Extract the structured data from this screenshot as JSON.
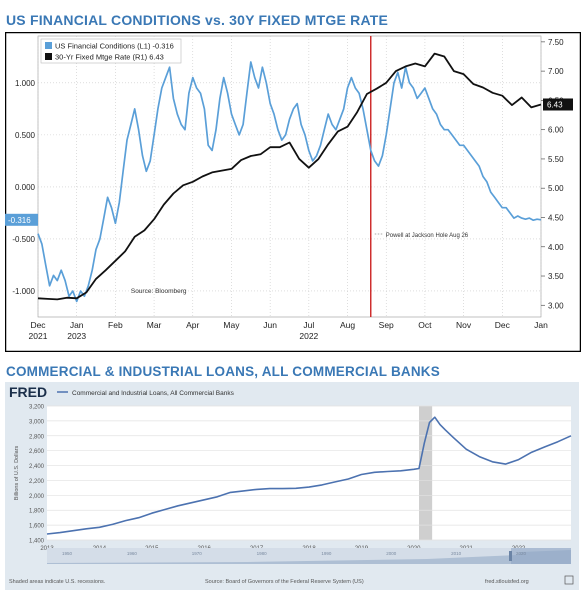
{
  "chart_data": [
    {
      "type": "line",
      "title": "US FINANCIAL CONDITIONS vs. 30Y FIXED MTGE RATE",
      "x_ticks": [
        "Dec",
        "Jan",
        "Feb",
        "Mar",
        "Apr",
        "May",
        "Jun",
        "Jul",
        "Aug",
        "Sep",
        "Oct",
        "Nov",
        "Dec",
        "Jan"
      ],
      "x_years": [
        {
          "label": "2021",
          "at": "Dec"
        },
        {
          "label": "2022",
          "at": "Jul"
        },
        {
          "label": "2023",
          "at": "Jan"
        }
      ],
      "y_left": {
        "ylim": [
          -1.25,
          1.45
        ],
        "ticks": [
          "1.000",
          "0.500",
          "0.000",
          "-0.500",
          "-1.000"
        ]
      },
      "y_right": {
        "ylim": [
          2.8,
          7.6
        ],
        "ticks": [
          "7.50",
          "7.00",
          "6.50",
          "6.00",
          "5.50",
          "5.00",
          "4.50",
          "4.00",
          "3.50",
          "3.00"
        ]
      },
      "series": [
        {
          "name": "US Financial Conditions (L1)",
          "last": "-0.316",
          "axis": "left",
          "color": "#5a9fd8",
          "x": [
            0,
            0.1,
            0.2,
            0.3,
            0.4,
            0.5,
            0.6,
            0.7,
            0.8,
            0.9,
            1.0,
            1.1,
            1.2,
            1.3,
            1.4,
            1.5,
            1.6,
            1.7,
            1.8,
            1.9,
            2.0,
            2.1,
            2.2,
            2.3,
            2.4,
            2.5,
            2.6,
            2.7,
            2.8,
            2.9,
            3.0,
            3.1,
            3.2,
            3.3,
            3.4,
            3.5,
            3.6,
            3.7,
            3.8,
            3.9,
            4.0,
            4.1,
            4.2,
            4.3,
            4.4,
            4.5,
            4.6,
            4.7,
            4.8,
            4.9,
            5.0,
            5.1,
            5.2,
            5.3,
            5.4,
            5.5,
            5.6,
            5.7,
            5.8,
            5.9,
            6.0,
            6.1,
            6.2,
            6.3,
            6.4,
            6.5,
            6.6,
            6.7,
            6.8,
            6.9,
            7.0,
            7.1,
            7.2,
            7.3,
            7.4,
            7.5,
            7.6,
            7.7,
            7.8,
            7.9,
            8.0,
            8.1,
            8.2,
            8.3,
            8.4,
            8.5,
            8.6,
            8.7,
            8.8,
            8.9,
            9.0,
            9.1,
            9.2,
            9.3,
            9.4,
            9.5,
            9.6,
            9.7,
            9.8,
            9.9,
            10.0,
            10.1,
            10.2,
            10.3,
            10.4,
            10.5,
            10.6,
            10.7,
            10.8,
            10.9,
            11.0,
            11.1,
            11.2,
            11.3,
            11.4,
            11.5,
            11.6,
            11.7,
            11.8,
            11.9,
            12.0,
            12.1,
            12.2,
            12.3,
            12.4,
            12.5,
            12.6,
            12.7,
            12.8,
            12.9,
            13.0
          ],
          "values": [
            -0.45,
            -0.55,
            -0.75,
            -0.95,
            -0.85,
            -0.9,
            -0.8,
            -0.9,
            -1.05,
            -1.0,
            -1.1,
            -1.0,
            -1.05,
            -0.95,
            -0.8,
            -0.6,
            -0.5,
            -0.3,
            -0.1,
            -0.2,
            -0.35,
            -0.15,
            0.15,
            0.45,
            0.6,
            0.75,
            0.55,
            0.3,
            0.15,
            0.25,
            0.5,
            0.75,
            0.95,
            1.05,
            1.15,
            0.85,
            0.7,
            0.6,
            0.55,
            0.9,
            1.05,
            0.95,
            0.9,
            0.75,
            0.4,
            0.35,
            0.55,
            0.85,
            1.05,
            0.9,
            0.7,
            0.6,
            0.5,
            0.6,
            0.9,
            1.2,
            1.05,
            0.95,
            1.15,
            1.0,
            0.8,
            0.7,
            0.55,
            0.45,
            0.5,
            0.65,
            0.75,
            0.8,
            0.6,
            0.5,
            0.35,
            0.25,
            0.3,
            0.4,
            0.55,
            0.7,
            0.6,
            0.55,
            0.65,
            0.75,
            0.95,
            1.05,
            0.95,
            0.9,
            0.75,
            0.55,
            0.35,
            0.25,
            0.2,
            0.3,
            0.5,
            0.75,
            1.0,
            1.1,
            0.95,
            1.15,
            1.0,
            0.95,
            0.85,
            0.9,
            0.95,
            0.85,
            0.75,
            0.7,
            0.6,
            0.55,
            0.55,
            0.5,
            0.45,
            0.4,
            0.4,
            0.35,
            0.3,
            0.25,
            0.2,
            0.1,
            0.05,
            -0.05,
            -0.1,
            -0.15,
            -0.2,
            -0.2,
            -0.25,
            -0.3,
            -0.28,
            -0.3,
            -0.31,
            -0.3,
            -0.32,
            -0.31,
            -0.316
          ]
        },
        {
          "name": "30-Yr Fixed Mtge Rate (R1)",
          "last": "6.43",
          "axis": "right",
          "color": "#111111",
          "x": [
            0,
            0.25,
            0.5,
            0.75,
            1.0,
            1.25,
            1.5,
            1.75,
            2.0,
            2.25,
            2.5,
            2.75,
            3.0,
            3.25,
            3.5,
            3.75,
            4.0,
            4.25,
            4.5,
            4.75,
            5.0,
            5.25,
            5.5,
            5.75,
            6.0,
            6.25,
            6.5,
            6.75,
            7.0,
            7.25,
            7.5,
            7.75,
            8.0,
            8.25,
            8.5,
            8.75,
            9.0,
            9.25,
            9.5,
            9.75,
            10.0,
            10.25,
            10.5,
            10.75,
            11.0,
            11.25,
            11.5,
            11.75,
            12.0,
            12.25,
            12.5,
            12.75,
            13.0
          ],
          "values": [
            3.12,
            3.11,
            3.1,
            3.13,
            3.12,
            3.22,
            3.45,
            3.6,
            3.76,
            3.92,
            4.17,
            4.28,
            4.47,
            4.72,
            4.91,
            5.05,
            5.11,
            5.2,
            5.27,
            5.3,
            5.33,
            5.48,
            5.55,
            5.58,
            5.7,
            5.7,
            5.78,
            5.5,
            5.35,
            5.5,
            5.75,
            5.97,
            6.05,
            6.3,
            6.61,
            6.7,
            6.8,
            7.0,
            7.08,
            7.13,
            7.08,
            7.3,
            7.25,
            7.0,
            6.95,
            6.78,
            6.72,
            6.63,
            6.58,
            6.42,
            6.55,
            6.38,
            6.43
          ]
        }
      ],
      "annotations": {
        "vline_label": "Powell at Jackson Hole Aug 26",
        "vline_x": 8.6,
        "source": "Source: Bloomberg"
      },
      "colors": {
        "left_series": "#5a9fd8",
        "right_series": "#111111",
        "vline": "#cc2222"
      }
    },
    {
      "type": "line",
      "title": "COMMERCIAL & INDUSTRIAL LOANS, ALL COMMERCIAL BANKS",
      "brand": "FRED",
      "legend": "Commercial and Industrial Loans, All Commercial Banks",
      "ylabel": "Billions of U.S. Dollars",
      "y_ticks": [
        "3,200",
        "3,000",
        "2,800",
        "2,600",
        "2,400",
        "2,200",
        "2,000",
        "1,800",
        "1,600",
        "1,400"
      ],
      "ylim": [
        1400,
        3200
      ],
      "x_ticks": [
        "2013",
        "2014",
        "2015",
        "2016",
        "2017",
        "2018",
        "2019",
        "2020",
        "2021",
        "2022"
      ],
      "xlim": [
        2013,
        2023
      ],
      "recession": [
        2020.1,
        2020.35
      ],
      "series": [
        {
          "name": "Commercial and Industrial Loans, All Commercial Banks",
          "color": "#4c72b0",
          "x": [
            2013.0,
            2013.25,
            2013.5,
            2013.75,
            2014.0,
            2014.25,
            2014.5,
            2014.75,
            2015.0,
            2015.25,
            2015.5,
            2015.75,
            2016.0,
            2016.25,
            2016.5,
            2016.75,
            2017.0,
            2017.25,
            2017.5,
            2017.75,
            2018.0,
            2018.25,
            2018.5,
            2018.75,
            2019.0,
            2019.25,
            2019.5,
            2019.75,
            2020.0,
            2020.1,
            2020.2,
            2020.3,
            2020.4,
            2020.5,
            2020.6,
            2020.75,
            2021.0,
            2021.25,
            2021.5,
            2021.75,
            2022.0,
            2022.25,
            2022.5,
            2022.75,
            2023.0
          ],
          "values": [
            1480,
            1500,
            1525,
            1550,
            1570,
            1610,
            1660,
            1700,
            1760,
            1810,
            1860,
            1900,
            1940,
            1980,
            2040,
            2060,
            2080,
            2090,
            2090,
            2095,
            2110,
            2140,
            2180,
            2220,
            2280,
            2310,
            2320,
            2330,
            2350,
            2360,
            2700,
            2980,
            3050,
            2950,
            2880,
            2780,
            2620,
            2520,
            2450,
            2420,
            2480,
            2580,
            2650,
            2720,
            2800
          ]
        }
      ],
      "recession_note": "Shaded areas indicate U.S. recessions.",
      "source": "Source: Board of Governors of the Federal Reserve System (US)",
      "site": "fred.stlouisfed.org",
      "navigator_years": [
        "1950",
        "1960",
        "1970",
        "1980",
        "1990",
        "2000",
        "2010",
        "2020"
      ]
    }
  ]
}
